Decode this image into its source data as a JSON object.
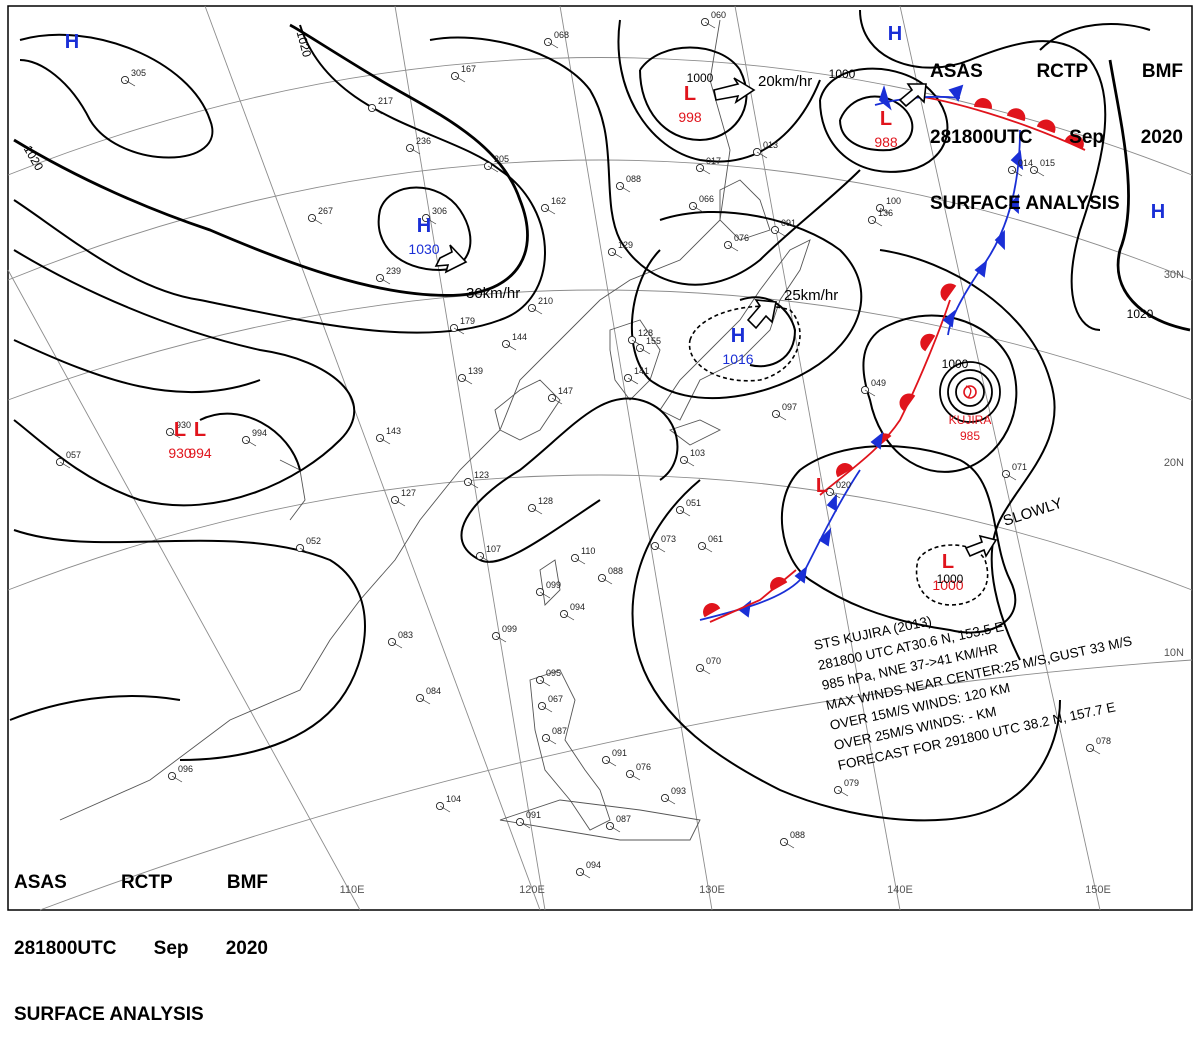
{
  "header": {
    "line1": [
      "ASAS",
      "RCTP",
      "BMF"
    ],
    "line2": [
      "281800UTC",
      "Sep",
      "2020"
    ],
    "line3": "SURFACE ANALYSIS"
  },
  "colors": {
    "high": "#1a2fd6",
    "low": "#e0141c",
    "isobar": "#000000",
    "coast": "#555555",
    "grid": "#888888"
  },
  "pressure_centers": [
    {
      "type": "H",
      "value": "1030"
    },
    {
      "type": "H",
      "value": "1016"
    },
    {
      "type": "L",
      "value": "998"
    },
    {
      "type": "L",
      "value": "988"
    },
    {
      "type": "L",
      "value": "1000"
    },
    {
      "type": "L",
      "value": "994"
    },
    {
      "type": "L",
      "value": "930"
    },
    {
      "type": "H",
      "value": ""
    },
    {
      "type": "H",
      "value": ""
    },
    {
      "type": "H",
      "value": ""
    },
    {
      "type": "L",
      "value": ""
    }
  ],
  "isobar_labels": [
    "1020",
    "1020",
    "1020",
    "1000",
    "1000",
    "1000",
    "1000"
  ],
  "motion_labels": [
    "20km/hr",
    "30km/hr",
    "25km/hr",
    "SLOWLY"
  ],
  "typhoon": {
    "name": "KUJIRA",
    "pressure": "985",
    "bulletin": [
      "STS  KUJIRA  (2013)",
      "281800 UTC  AT30.6 N, 153.5 E",
      "985 hPa, NNE  37->41 KM/HR",
      "MAX WINDS NEAR CENTER:25 M/S,GUST 33 M/S",
      "OVER 15M/S WINDS: 120 KM",
      "OVER 25M/S WINDS: - KM",
      "FORECAST FOR 291800 UTC 38.2 N, 157.7 E"
    ]
  },
  "longitude_labels": [
    "110E",
    "120E",
    "130E",
    "140E",
    "150E"
  ],
  "latitude_labels": [
    "30N",
    "20N",
    "10N"
  ],
  "station_values": [
    "068",
    "305",
    "167",
    "217",
    "236",
    "205",
    "162",
    "088",
    "129",
    "306",
    "267",
    "239",
    "210",
    "179",
    "144",
    "128",
    "155",
    "141",
    "139",
    "143",
    "123",
    "127",
    "128",
    "147",
    "103",
    "051",
    "076",
    "052",
    "107",
    "110",
    "073",
    "061",
    "088",
    "099",
    "094",
    "083",
    "099",
    "084",
    "076",
    "070",
    "095",
    "067",
    "087",
    "091",
    "104",
    "091",
    "087",
    "093",
    "088",
    "094",
    "096",
    "057",
    "994",
    "930",
    "017",
    "013",
    "066",
    "091",
    "100",
    "049",
    "097",
    "020",
    "071",
    "078",
    "079",
    "136",
    "060",
    "014",
    "015"
  ]
}
